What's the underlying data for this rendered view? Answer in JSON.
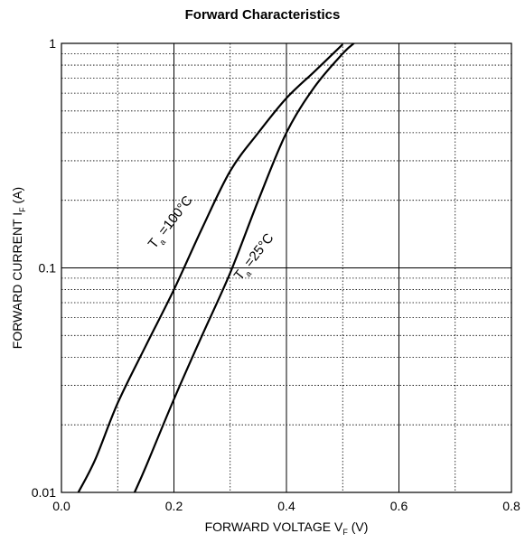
{
  "chart_data": {
    "type": "line",
    "title": "Forward Characteristics",
    "xlabel": {
      "main": "FORWARD VOLTAGE V",
      "sub": "F",
      "suffix": " (V)"
    },
    "ylabel": {
      "main": "FORWARD CURRENT I",
      "sub": "F",
      "suffix": " (A)"
    },
    "xlim": [
      0.0,
      0.8
    ],
    "ylim": [
      0.01,
      1
    ],
    "yscale": "log",
    "grid": true,
    "x_ticks": [
      "0.0",
      "0.2",
      "0.4",
      "0.6",
      "0.8"
    ],
    "y_ticks": [
      "0.01",
      "0.1",
      "1"
    ],
    "series": [
      {
        "name": "",
        "label": {
          "main": "T",
          "sub": "a",
          "suffix": " =100°C"
        },
        "color": "#000000",
        "points": [
          [
            0.03,
            0.01
          ],
          [
            0.06,
            0.014
          ],
          [
            0.1,
            0.025
          ],
          [
            0.15,
            0.045
          ],
          [
            0.2,
            0.08
          ],
          [
            0.25,
            0.15
          ],
          [
            0.3,
            0.27
          ],
          [
            0.35,
            0.4
          ],
          [
            0.4,
            0.57
          ],
          [
            0.45,
            0.75
          ],
          [
            0.5,
            0.99
          ]
        ]
      },
      {
        "name": "",
        "label": {
          "main": "T",
          "sub": "a",
          "suffix": " =25°C"
        },
        "color": "#000000",
        "points": [
          [
            0.13,
            0.01
          ],
          [
            0.15,
            0.013
          ],
          [
            0.2,
            0.026
          ],
          [
            0.25,
            0.05
          ],
          [
            0.3,
            0.095
          ],
          [
            0.35,
            0.2
          ],
          [
            0.4,
            0.4
          ],
          [
            0.45,
            0.64
          ],
          [
            0.5,
            0.9
          ],
          [
            0.52,
            1.0
          ]
        ]
      }
    ]
  }
}
